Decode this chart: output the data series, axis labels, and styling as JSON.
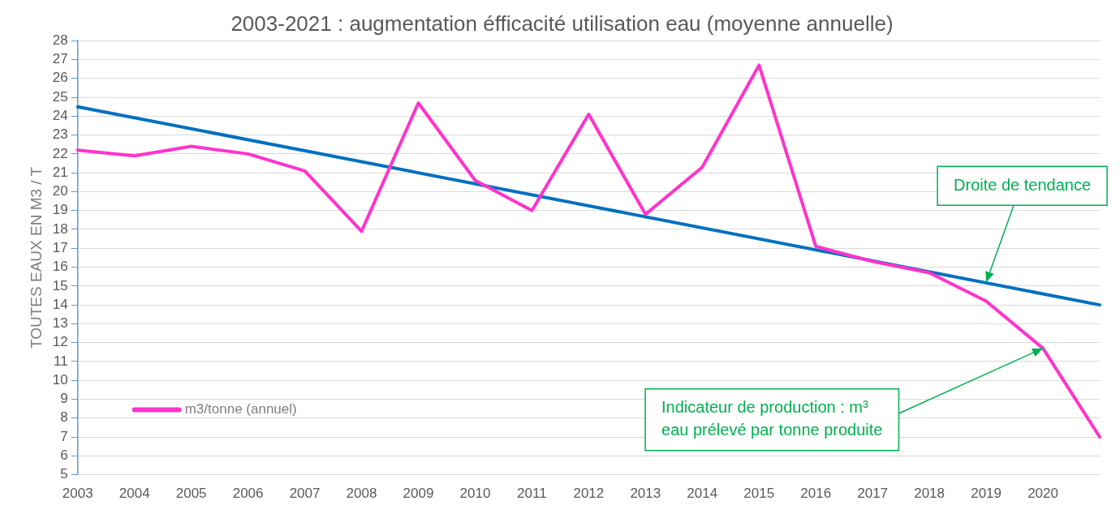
{
  "chart_data": {
    "type": "line",
    "title": "2003-2021 : augmentation éfficacité utilisation eau (moyenne annuelle)",
    "ylabel": "TOUTES EAUX EN M3 / T",
    "categories": [
      "2003",
      "2004",
      "2005",
      "2006",
      "2007",
      "2008",
      "2009",
      "2010",
      "2011",
      "2012",
      "2013",
      "2014",
      "2015",
      "2016",
      "2017",
      "2018",
      "2019",
      "2020",
      null
    ],
    "series": [
      {
        "name": "m3/tonne (annuel)",
        "color": "#ff33cc",
        "values": [
          22.2,
          21.9,
          22.4,
          22.0,
          21.1,
          17.9,
          24.7,
          20.6,
          19.0,
          24.1,
          18.8,
          21.3,
          26.7,
          17.1,
          16.3,
          15.7,
          14.2,
          11.7,
          7.0
        ]
      },
      {
        "color": "#0070c0",
        "values": [
          24.5,
          null,
          null,
          null,
          null,
          null,
          null,
          null,
          null,
          null,
          null,
          null,
          null,
          null,
          null,
          null,
          null,
          null,
          14.0
        ]
      }
    ],
    "ylim": [
      5,
      28
    ],
    "yticks": [
      5,
      6,
      7,
      8,
      9,
      10,
      11,
      12,
      13,
      14,
      15,
      16,
      17,
      18,
      19,
      20,
      21,
      22,
      23,
      24,
      25,
      26,
      27,
      28
    ],
    "grid": "y",
    "legend": "bottom left",
    "marker": "none",
    "line_style": "solid",
    "annotations": [
      {
        "text": "Droite de tendance",
        "x": "2019",
        "y": 15.2
      },
      {
        "text": "Indicateur de production : m³\neau prélevé par tonne produite",
        "x": "2020",
        "y": 11.7
      }
    ]
  }
}
